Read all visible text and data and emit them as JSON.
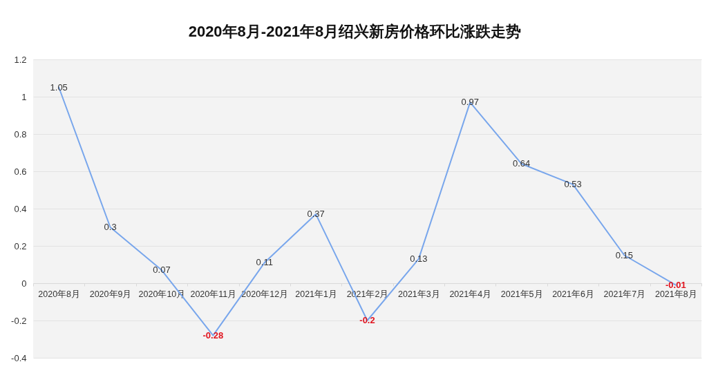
{
  "chart_data": {
    "type": "line",
    "title": "2020年8月-2021年8月绍兴新房价格环比涨跌走势",
    "categories": [
      "2020年8月",
      "2020年9月",
      "2020年10月",
      "2020年11月",
      "2020年12月",
      "2021年1月",
      "2021年2月",
      "2021年3月",
      "2021年4月",
      "2021年5月",
      "2021年6月",
      "2021年7月",
      "2021年8月"
    ],
    "values": [
      1.05,
      0.3,
      0.07,
      -0.28,
      0.11,
      0.37,
      -0.2,
      0.13,
      0.97,
      0.64,
      0.53,
      0.15,
      -0.01
    ],
    "color": "#78a6ec",
    "ylim": [
      -0.4,
      1.2
    ],
    "yticks": [
      -0.4,
      -0.2,
      0,
      0.2,
      0.4,
      0.6,
      0.8,
      1,
      1.2
    ],
    "grid": "y",
    "data_labels": true,
    "marker": "none",
    "line_style": "solid"
  }
}
